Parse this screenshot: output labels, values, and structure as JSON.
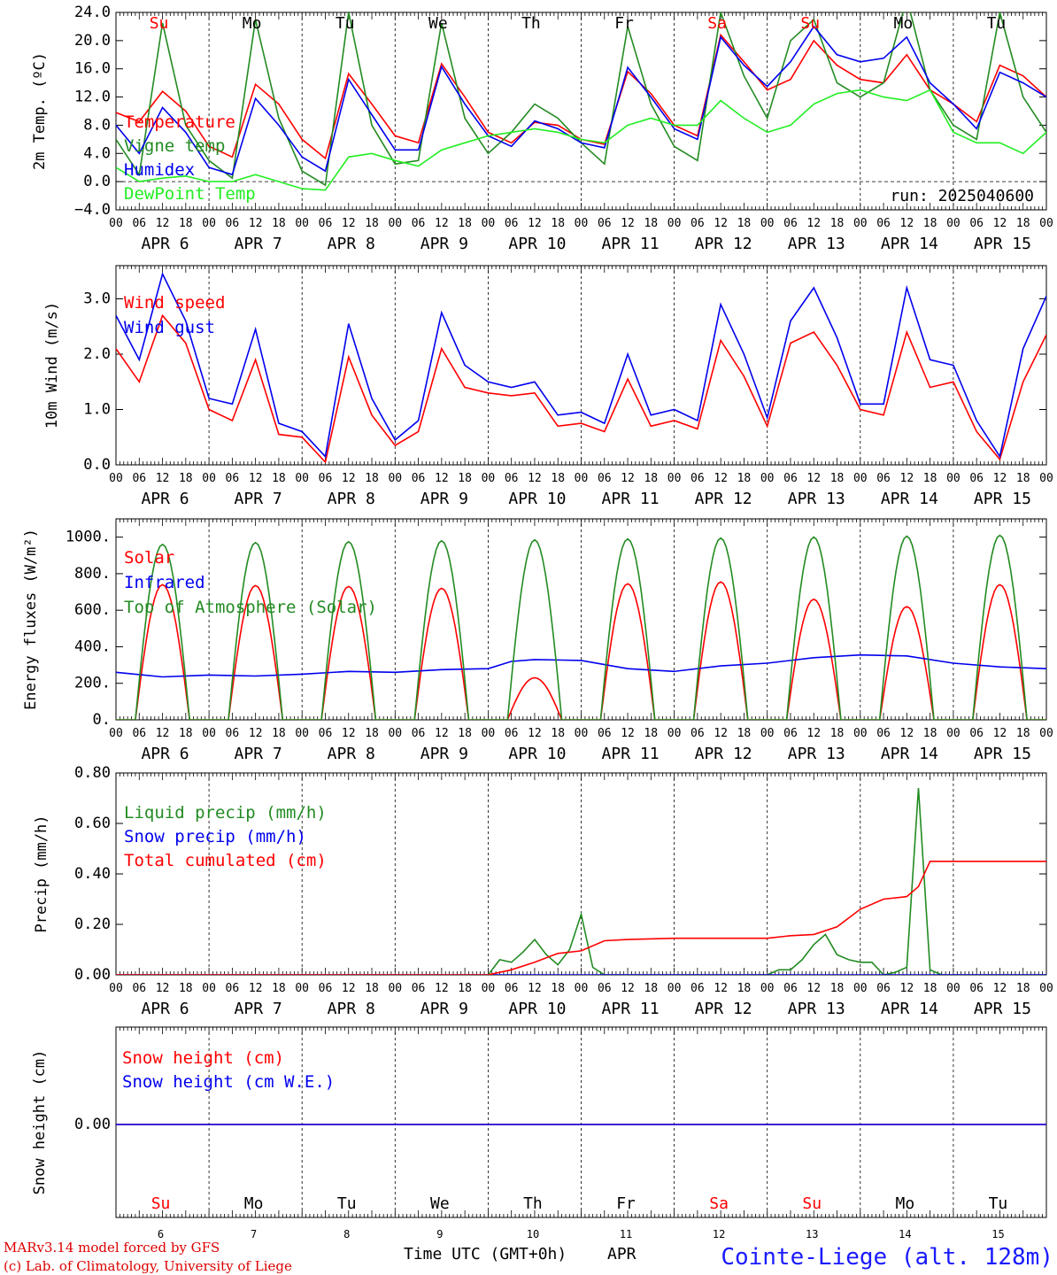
{
  "days": {
    "names": [
      "Su",
      "Mo",
      "Tu",
      "We",
      "Th",
      "Fr",
      "Sa",
      "Su",
      "Mo",
      "Tu"
    ],
    "name_colors": [
      "#ff0000",
      "#000000",
      "#000000",
      "#000000",
      "#000000",
      "#000000",
      "#ff0000",
      "#ff0000",
      "#000000",
      "#000000"
    ],
    "dates": [
      "APR  6",
      "APR  7",
      "APR  8",
      "APR  9",
      "APR 10",
      "APR 11",
      "APR 12",
      "APR 13",
      "APR 14",
      "APR 15"
    ],
    "numbers": [
      "6",
      "7",
      "8",
      "9",
      "10",
      "11",
      "12",
      "13",
      "14",
      "15"
    ],
    "hour_labels": [
      "00",
      "06",
      "12",
      "18"
    ],
    "final_hour": "00"
  },
  "run_label": "run: 2025040600",
  "footer": {
    "model": "MARv3.14 model forced by GFS",
    "credit": "(c) Lab. of Climatology, University of Liege",
    "time_axis": "Time UTC (GMT+0h)",
    "month": "APR",
    "station": "Cointe-Liege (alt. 128m)"
  },
  "colors": {
    "red": "#ff0000",
    "blue": "#0000ee",
    "darkgreen": "#228b22",
    "lightgreen": "#22ee22"
  },
  "chart_data": [
    {
      "type": "line",
      "ylabel": "2m Temp. (ºC)",
      "ylim": [
        -4,
        24
      ],
      "ytick_labels": [
        "24.0",
        "20.0",
        "16.0",
        "12.0",
        "8.0",
        "4.0",
        "0.0",
        "−4.0"
      ],
      "x_unit": "hours since APR 6 00 UTC",
      "xlim": [
        0,
        240
      ],
      "series": [
        {
          "name": "Temperature",
          "color": "#ff0000",
          "x": [
            0,
            6,
            12,
            18,
            24,
            30,
            36,
            42,
            48,
            54,
            60,
            66,
            72,
            78,
            84,
            90,
            96,
            102,
            108,
            114,
            120,
            126,
            132,
            138,
            144,
            150,
            156,
            162,
            168,
            174,
            180,
            186,
            192,
            198,
            204,
            210,
            216,
            222,
            228,
            234,
            240
          ],
          "y": [
            9.8,
            8.5,
            12.8,
            10,
            5,
            3.5,
            13.8,
            11,
            6,
            3.3,
            15.3,
            11,
            6.5,
            5.5,
            16.7,
            12,
            7,
            5.5,
            8.4,
            8,
            6,
            5.3,
            15.6,
            12.5,
            8,
            6.5,
            20.8,
            17,
            13,
            14.5,
            20,
            16.5,
            14.5,
            14,
            18,
            13,
            11,
            8.5,
            16.5,
            15,
            12
          ]
        },
        {
          "name": "Vigne temp",
          "color": "#228b22",
          "x": [
            0,
            6,
            12,
            18,
            24,
            30,
            36,
            42,
            48,
            54,
            60,
            66,
            72,
            78,
            84,
            90,
            96,
            102,
            108,
            114,
            120,
            126,
            132,
            138,
            144,
            150,
            156,
            162,
            168,
            174,
            180,
            186,
            192,
            198,
            204,
            210,
            216,
            222,
            228,
            234,
            240
          ],
          "y": [
            6,
            1,
            22.5,
            8,
            3,
            0.5,
            23,
            9,
            1.5,
            -0.5,
            24,
            8,
            2.5,
            3,
            22.5,
            9,
            4,
            7,
            11,
            9,
            5.5,
            2.5,
            22,
            11,
            5,
            3,
            24,
            15,
            9,
            20,
            23,
            14,
            12,
            14,
            26,
            13,
            8,
            6,
            24,
            12,
            7
          ]
        },
        {
          "name": "Humidex",
          "color": "#0000ee",
          "x": [
            0,
            6,
            12,
            18,
            24,
            30,
            36,
            42,
            48,
            54,
            60,
            66,
            72,
            78,
            84,
            90,
            96,
            102,
            108,
            114,
            120,
            126,
            132,
            138,
            144,
            150,
            156,
            162,
            168,
            174,
            180,
            186,
            192,
            198,
            204,
            210,
            216,
            222,
            228,
            234,
            240
          ],
          "y": [
            8,
            4,
            10.5,
            7,
            2,
            1,
            11.8,
            8,
            3.5,
            1.5,
            14.5,
            9.5,
            4.5,
            4.5,
            16.3,
            11,
            6.5,
            5,
            8.6,
            7.5,
            5.5,
            4.8,
            16.2,
            12,
            7.5,
            6,
            20.5,
            16.5,
            13.5,
            17,
            22,
            18,
            17,
            17.5,
            20.5,
            14,
            11,
            7.5,
            15.5,
            14,
            12
          ]
        },
        {
          "name": "DewPoint Temp",
          "color": "#22ee22",
          "x": [
            0,
            6,
            12,
            18,
            24,
            30,
            36,
            42,
            48,
            54,
            60,
            66,
            72,
            78,
            84,
            90,
            96,
            102,
            108,
            114,
            120,
            126,
            132,
            138,
            144,
            150,
            156,
            162,
            168,
            174,
            180,
            186,
            192,
            198,
            204,
            210,
            216,
            222,
            228,
            234,
            240
          ],
          "y": [
            2,
            0,
            0.5,
            0.8,
            0,
            0,
            1,
            0,
            -1,
            -1.2,
            3.5,
            4,
            3,
            2.2,
            4.5,
            5.5,
            6.5,
            7,
            7.5,
            7,
            6,
            5.5,
            8,
            9,
            8,
            8,
            11.5,
            9,
            7,
            8,
            11,
            12.5,
            13,
            12,
            11.5,
            13,
            7,
            5.5,
            5.5,
            4,
            7
          ]
        }
      ]
    },
    {
      "type": "line",
      "ylabel": "10m Wind (m/s)",
      "ylim": [
        0,
        3.6
      ],
      "ytick_labels": [
        "3.0",
        "2.0",
        "1.0",
        "0.0"
      ],
      "x_unit": "hours since APR 6 00 UTC",
      "xlim": [
        0,
        240
      ],
      "series": [
        {
          "name": "Wind speed",
          "color": "#ff0000",
          "x": [
            0,
            6,
            12,
            18,
            24,
            30,
            36,
            42,
            48,
            54,
            60,
            66,
            72,
            78,
            84,
            90,
            96,
            102,
            108,
            114,
            120,
            126,
            132,
            138,
            144,
            150,
            156,
            162,
            168,
            174,
            180,
            186,
            192,
            198,
            204,
            210,
            216,
            222,
            228,
            234,
            240
          ],
          "y": [
            2.1,
            1.5,
            2.7,
            2.2,
            1,
            0.8,
            1.9,
            0.55,
            0.5,
            0.05,
            1.95,
            0.9,
            0.35,
            0.6,
            2.1,
            1.4,
            1.3,
            1.25,
            1.3,
            0.7,
            0.75,
            0.6,
            1.55,
            0.7,
            0.8,
            0.65,
            2.25,
            1.6,
            0.7,
            2.2,
            2.4,
            1.8,
            1,
            0.9,
            2.4,
            1.4,
            1.5,
            0.6,
            0.1,
            1.5,
            2.35
          ]
        },
        {
          "name": "Wind gust",
          "color": "#0000ee",
          "x": [
            0,
            6,
            12,
            18,
            24,
            30,
            36,
            42,
            48,
            54,
            60,
            66,
            72,
            78,
            84,
            90,
            96,
            102,
            108,
            114,
            120,
            126,
            132,
            138,
            144,
            150,
            156,
            162,
            168,
            174,
            180,
            186,
            192,
            198,
            204,
            210,
            216,
            222,
            228,
            234,
            240
          ],
          "y": [
            2.7,
            1.9,
            3.45,
            2.6,
            1.2,
            1.1,
            2.45,
            0.75,
            0.6,
            0.15,
            2.55,
            1.2,
            0.45,
            0.8,
            2.75,
            1.8,
            1.5,
            1.4,
            1.5,
            0.9,
            0.95,
            0.75,
            2,
            0.9,
            1,
            0.8,
            2.9,
            2,
            0.85,
            2.6,
            3.2,
            2.3,
            1.1,
            1.1,
            3.2,
            1.9,
            1.8,
            0.8,
            0.15,
            2.1,
            3.05
          ]
        }
      ]
    },
    {
      "type": "line",
      "ylabel": "Energy fluxes (W/m²)",
      "ylim": [
        0,
        1100
      ],
      "ytick_labels": [
        "1000.",
        "800.",
        "600.",
        "400.",
        "200.",
        "0."
      ],
      "x_unit": "hours since APR 6 00 UTC",
      "xlim": [
        0,
        240
      ],
      "series": [
        {
          "name": "Solar",
          "color": "#ff0000",
          "day_peaks": [
            740,
            735,
            730,
            720,
            230,
            745,
            755,
            660,
            620,
            740
          ]
        },
        {
          "name": "Infrared",
          "color": "#0000ee",
          "x": [
            0,
            12,
            24,
            36,
            48,
            60,
            72,
            84,
            96,
            102,
            108,
            120,
            132,
            144,
            156,
            168,
            180,
            192,
            204,
            216,
            228,
            240
          ],
          "y": [
            260,
            235,
            245,
            240,
            250,
            265,
            260,
            275,
            280,
            320,
            330,
            325,
            280,
            265,
            295,
            310,
            340,
            355,
            350,
            310,
            290,
            280
          ]
        },
        {
          "name": "Top of Atmosphere (Solar)",
          "color": "#228b22",
          "day_peaks": [
            960,
            970,
            975,
            980,
            985,
            990,
            995,
            1000,
            1005,
            1010
          ]
        }
      ]
    },
    {
      "type": "line",
      "ylabel": "Precip (mm/h)",
      "ylim": [
        0,
        0.8
      ],
      "ytick_labels": [
        "0.80",
        "0.60",
        "0.40",
        "0.20",
        "0.00"
      ],
      "x_unit": "hours since APR 6 00 UTC",
      "xlim": [
        0,
        240
      ],
      "series": [
        {
          "name": "Liquid precip (mm/h)",
          "color": "#228b22",
          "x": [
            0,
            96,
            99,
            102,
            105,
            108,
            111,
            114,
            117,
            120,
            123,
            126,
            129,
            168,
            171,
            174,
            177,
            180,
            183,
            186,
            189,
            192,
            195,
            198,
            201,
            204,
            207,
            210,
            213,
            240
          ],
          "y": [
            0,
            0,
            0.06,
            0.05,
            0.09,
            0.14,
            0.08,
            0.04,
            0.1,
            0.24,
            0.03,
            0,
            0,
            0,
            0.02,
            0.02,
            0.06,
            0.12,
            0.16,
            0.08,
            0.06,
            0.05,
            0.05,
            0,
            0.01,
            0.03,
            0.74,
            0.02,
            0,
            0
          ]
        },
        {
          "name": "Snow precip (mm/h)",
          "color": "#0000ee",
          "x": [
            0,
            240
          ],
          "y": [
            0,
            0
          ]
        },
        {
          "name": "Total cumulated (cm)",
          "color": "#ff0000",
          "x": [
            0,
            96,
            102,
            108,
            114,
            120,
            126,
            132,
            144,
            156,
            168,
            174,
            180,
            186,
            192,
            198,
            204,
            207,
            210,
            216,
            240
          ],
          "y": [
            0,
            0,
            0.02,
            0.05,
            0.085,
            0.095,
            0.135,
            0.14,
            0.145,
            0.145,
            0.145,
            0.155,
            0.16,
            0.19,
            0.26,
            0.3,
            0.31,
            0.35,
            0.45,
            0.45,
            0.45
          ]
        }
      ]
    },
    {
      "type": "line",
      "ylabel": "Snow height (cm)",
      "ytick_labels": [
        "0.00"
      ],
      "x_unit": "hours since APR 6 00 UTC",
      "xlim": [
        0,
        240
      ],
      "series": [
        {
          "name": "Snow height (cm)",
          "color": "#ff0000",
          "x": [
            0,
            240
          ],
          "y": [
            0,
            0
          ]
        },
        {
          "name": "Snow height (cm W.E.)",
          "color": "#0000ee",
          "x": [
            0,
            240
          ],
          "y": [
            0,
            0
          ]
        }
      ]
    }
  ]
}
